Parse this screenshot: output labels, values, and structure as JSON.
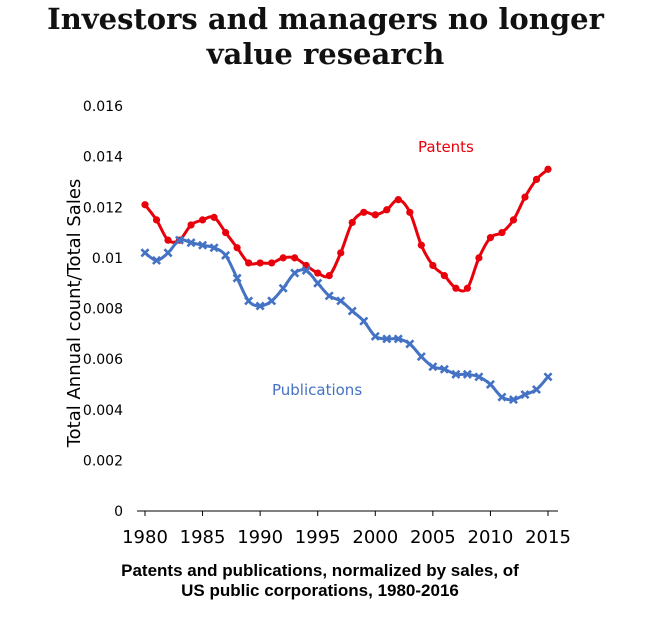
{
  "title": "Investors and managers no longer value research",
  "caption": "Patents and publications, normalized by sales, of US public corporations, 1980-2016",
  "colors": {
    "patents": "#e8000b",
    "publications": "#4472c4",
    "axis": "#000000"
  },
  "chart_data": {
    "type": "line",
    "title": "Investors and managers no longer value research",
    "xlabel": "",
    "ylabel": "Total Annual count/Total Sales",
    "xlim": [
      1980,
      2016
    ],
    "ylim": [
      0,
      0.016
    ],
    "x_ticks": [
      "1980",
      "1985",
      "1990",
      "1995",
      "2000",
      "2005",
      "2010",
      "2015"
    ],
    "y_ticks": [
      "0",
      "0.002",
      "0.004",
      "0.006",
      "0.008",
      "0.01",
      "0.012",
      "0.014",
      "0.016"
    ],
    "grid": false,
    "x": [
      1980,
      1981,
      1982,
      1983,
      1984,
      1985,
      1986,
      1987,
      1988,
      1989,
      1990,
      1991,
      1992,
      1993,
      1994,
      1995,
      1996,
      1997,
      1998,
      1999,
      2000,
      2001,
      2002,
      2003,
      2004,
      2005,
      2006,
      2007,
      2008,
      2009,
      2010,
      2011,
      2012,
      2013,
      2014,
      2015
    ],
    "series": [
      {
        "name": "Patents",
        "marker": "circle",
        "values": [
          0.0121,
          0.0115,
          0.0107,
          0.0107,
          0.0113,
          0.0115,
          0.0116,
          0.011,
          0.0104,
          0.0098,
          0.0098,
          0.0098,
          0.01,
          0.01,
          0.0097,
          0.0094,
          0.0093,
          0.0102,
          0.0114,
          0.0118,
          0.0117,
          0.0119,
          0.0123,
          0.0118,
          0.0105,
          0.0097,
          0.0093,
          0.0088,
          0.0088,
          0.01,
          0.0108,
          0.011,
          0.0115,
          0.0124,
          0.0131,
          0.0135
        ]
      },
      {
        "name": "Publications",
        "marker": "x",
        "values": [
          0.0102,
          0.0099,
          0.0102,
          0.0107,
          0.0106,
          0.0105,
          0.0104,
          0.0101,
          0.0092,
          0.0083,
          0.0081,
          0.0083,
          0.0088,
          0.0094,
          0.0095,
          0.009,
          0.0085,
          0.0083,
          0.0079,
          0.0075,
          0.0069,
          0.0068,
          0.0068,
          0.0066,
          0.0061,
          0.0057,
          0.0056,
          0.0054,
          0.0054,
          0.0053,
          0.005,
          0.0045,
          0.0044,
          0.0046,
          0.0048,
          0.0053
        ]
      }
    ],
    "annotations": [
      {
        "text": "Patents",
        "series": "Patents"
      },
      {
        "text": "Publications",
        "series": "Publications"
      }
    ]
  }
}
